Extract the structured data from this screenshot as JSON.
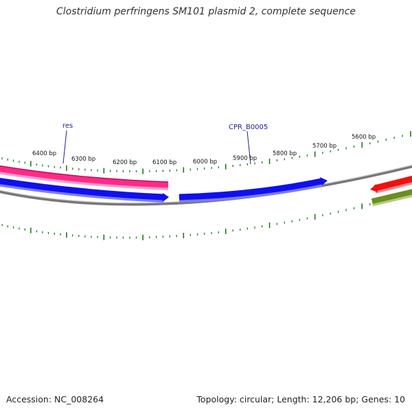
{
  "title": "Clostridium perfringens SM101 plasmid 2, complete sequence",
  "accession": "Accession: NC_008264",
  "topology": "Topology: circular; Length: 12,206 bp; Genes: 10",
  "colors": {
    "backbone": "#888888",
    "tick": "#1a7a1a",
    "res_feature": "#ff2a8a",
    "cpr_feature": "#1010ee",
    "red_feature": "#ee1111",
    "olive_feature": "#6b8e23",
    "label_line": "#1a1aa0"
  },
  "map": {
    "tick_labels": [
      "6400 bp",
      "6300 bp",
      "6200 bp",
      "6100 bp",
      "6000 bp",
      "5900 bp",
      "5800 bp",
      "5700 bp",
      "5600 bp"
    ],
    "features": [
      {
        "name": "res",
        "color": "pink"
      },
      {
        "name": "",
        "color": "blue"
      },
      {
        "name": "CPR_B0005",
        "color": "blue"
      },
      {
        "name": "",
        "color": "red"
      },
      {
        "name": "",
        "color": "olive"
      }
    ]
  }
}
